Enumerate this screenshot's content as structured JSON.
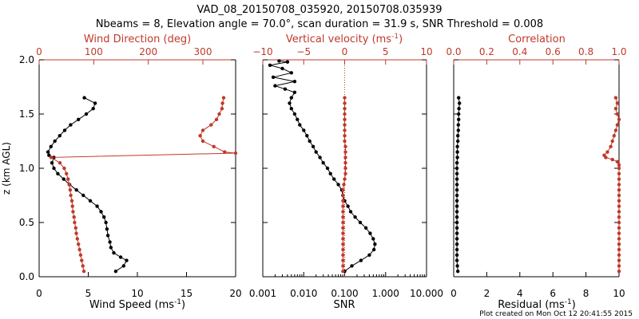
{
  "header": {
    "line1": "VAD_08_20150708_035920, 20150708.035939",
    "line2": "Nbeams = 8, Elevation angle = 70.0°, scan duration = 31.9 s, SNR Threshold = 0.008"
  },
  "footer": {
    "created": "Plot created on Mon Oct 12 20:41:55 2015"
  },
  "colors": {
    "black": "#000000",
    "red": "#c0392b"
  },
  "chart_data": [
    {
      "type": "line",
      "panel": "wind",
      "ylabel": "z (km AGL)",
      "ylim": [
        0,
        2.0
      ],
      "yticks": [
        "0.0",
        "0.5",
        "1.0",
        "1.5",
        "2.0"
      ],
      "xlabel": "Wind Speed (ms",
      "xlabel_sup": "-1",
      "xlabel_end": ")",
      "xlim": [
        0,
        20
      ],
      "xticks": [
        "0",
        "5",
        "10",
        "15",
        "20"
      ],
      "top_label": "Wind Direction (deg)",
      "top_lim": [
        0,
        360
      ],
      "top_ticks": [
        "0",
        "100",
        "200",
        "300"
      ],
      "series": [
        {
          "name": "Wind Speed",
          "color": "#000000",
          "points": [
            [
              7.8,
              0.05
            ],
            [
              8.6,
              0.1
            ],
            [
              8.9,
              0.15
            ],
            [
              8.3,
              0.18
            ],
            [
              7.6,
              0.22
            ],
            [
              7.3,
              0.27
            ],
            [
              7.2,
              0.32
            ],
            [
              7.0,
              0.38
            ],
            [
              6.9,
              0.44
            ],
            [
              6.8,
              0.5
            ],
            [
              6.6,
              0.55
            ],
            [
              6.3,
              0.6
            ],
            [
              5.9,
              0.65
            ],
            [
              5.2,
              0.7
            ],
            [
              4.5,
              0.75
            ],
            [
              3.8,
              0.8
            ],
            [
              3.1,
              0.85
            ],
            [
              2.5,
              0.9
            ],
            [
              1.9,
              0.95
            ],
            [
              1.5,
              1.0
            ],
            [
              1.3,
              1.05
            ],
            [
              1.5,
              1.1
            ],
            [
              1.0,
              1.12
            ],
            [
              0.9,
              1.15
            ],
            [
              1.2,
              1.2
            ],
            [
              1.6,
              1.25
            ],
            [
              2.1,
              1.3
            ],
            [
              2.6,
              1.35
            ],
            [
              3.2,
              1.4
            ],
            [
              4.0,
              1.45
            ],
            [
              4.8,
              1.5
            ],
            [
              5.5,
              1.55
            ],
            [
              5.7,
              1.6
            ],
            [
              4.6,
              1.65
            ]
          ]
        },
        {
          "name": "Wind Direction",
          "color": "#c0392b",
          "points": [
            [
              82,
              0.05
            ],
            [
              80,
              0.1
            ],
            [
              78,
              0.15
            ],
            [
              76,
              0.2
            ],
            [
              74,
              0.25
            ],
            [
              72,
              0.3
            ],
            [
              70,
              0.35
            ],
            [
              68,
              0.4
            ],
            [
              67,
              0.45
            ],
            [
              65,
              0.5
            ],
            [
              64,
              0.55
            ],
            [
              62,
              0.6
            ],
            [
              61,
              0.65
            ],
            [
              60,
              0.7
            ],
            [
              58,
              0.75
            ],
            [
              57,
              0.8
            ],
            [
              55,
              0.85
            ],
            [
              53,
              0.9
            ],
            [
              50,
              0.95
            ],
            [
              46,
              1.0
            ],
            [
              38,
              1.05
            ],
            [
              22,
              1.1
            ],
            [
              360,
              1.14
            ],
            [
              340,
              1.15
            ],
            [
              320,
              1.2
            ],
            [
              300,
              1.25
            ],
            [
              295,
              1.3
            ],
            [
              300,
              1.35
            ],
            [
              315,
              1.4
            ],
            [
              325,
              1.45
            ],
            [
              330,
              1.5
            ],
            [
              335,
              1.55
            ],
            [
              336,
              1.6
            ],
            [
              338,
              1.65
            ]
          ]
        }
      ]
    },
    {
      "type": "line",
      "panel": "snr",
      "xlabel": "SNR",
      "xscale": "log",
      "xlim": [
        0.001,
        10.0
      ],
      "xticks": [
        "0.001",
        "0.010",
        "0.100",
        "1.000",
        "10.000"
      ],
      "top_label": "Vertical velocity (ms",
      "top_label_sup": "-1",
      "top_label_end": ")",
      "top_lim": [
        -10,
        10
      ],
      "top_ticks": [
        "−10",
        "−5",
        "0",
        "5",
        "10"
      ],
      "series": [
        {
          "name": "SNR",
          "color": "#000000",
          "points": [
            [
              0.1,
              0.05
            ],
            [
              0.15,
              0.1
            ],
            [
              0.25,
              0.15
            ],
            [
              0.4,
              0.2
            ],
            [
              0.52,
              0.25
            ],
            [
              0.55,
              0.3
            ],
            [
              0.5,
              0.35
            ],
            [
              0.42,
              0.4
            ],
            [
              0.33,
              0.45
            ],
            [
              0.24,
              0.5
            ],
            [
              0.18,
              0.55
            ],
            [
              0.14,
              0.6
            ],
            [
              0.12,
              0.65
            ],
            [
              0.1,
              0.7
            ],
            [
              0.09,
              0.75
            ],
            [
              0.085,
              0.8
            ],
            [
              0.07,
              0.85
            ],
            [
              0.055,
              0.9
            ],
            [
              0.045,
              0.95
            ],
            [
              0.038,
              1.0
            ],
            [
              0.03,
              1.05
            ],
            [
              0.025,
              1.1
            ],
            [
              0.02,
              1.15
            ],
            [
              0.017,
              1.2
            ],
            [
              0.014,
              1.25
            ],
            [
              0.012,
              1.3
            ],
            [
              0.01,
              1.35
            ],
            [
              0.008,
              1.4
            ],
            [
              0.007,
              1.45
            ],
            [
              0.006,
              1.5
            ],
            [
              0.005,
              1.55
            ],
            [
              0.0045,
              1.6
            ],
            [
              0.005,
              1.65
            ],
            [
              0.006,
              1.7
            ],
            [
              0.0035,
              1.73
            ],
            [
              0.002,
              1.76
            ],
            [
              0.006,
              1.8
            ],
            [
              0.0018,
              1.84
            ],
            [
              0.005,
              1.88
            ],
            [
              0.003,
              1.92
            ],
            [
              0.0015,
              1.95
            ],
            [
              0.004,
              1.98
            ],
            [
              0.0025,
              1.99
            ]
          ]
        },
        {
          "name": "Vertical velocity",
          "color": "#c0392b",
          "points": [
            [
              -0.2,
              0.05
            ],
            [
              -0.2,
              0.1
            ],
            [
              -0.2,
              0.15
            ],
            [
              -0.2,
              0.2
            ],
            [
              -0.2,
              0.25
            ],
            [
              -0.2,
              0.3
            ],
            [
              -0.2,
              0.35
            ],
            [
              -0.2,
              0.4
            ],
            [
              -0.2,
              0.45
            ],
            [
              -0.2,
              0.5
            ],
            [
              -0.2,
              0.55
            ],
            [
              -0.2,
              0.6
            ],
            [
              -0.2,
              0.65
            ],
            [
              -0.2,
              0.7
            ],
            [
              -0.2,
              0.75
            ],
            [
              -0.2,
              0.8
            ],
            [
              -0.1,
              0.85
            ],
            [
              0.0,
              0.9
            ],
            [
              0.1,
              0.95
            ],
            [
              0.1,
              1.0
            ],
            [
              0.1,
              1.05
            ],
            [
              0.1,
              1.1
            ],
            [
              0.1,
              1.15
            ],
            [
              0.1,
              1.2
            ],
            [
              0.0,
              1.25
            ],
            [
              0.0,
              1.3
            ],
            [
              0.0,
              1.35
            ],
            [
              0.0,
              1.4
            ],
            [
              0.0,
              1.45
            ],
            [
              0.0,
              1.5
            ],
            [
              0.0,
              1.55
            ],
            [
              0.0,
              1.6
            ],
            [
              0.0,
              1.65
            ]
          ]
        }
      ]
    },
    {
      "type": "line",
      "panel": "residual",
      "xlabel": "Residual (ms",
      "xlabel_sup": "-1",
      "xlabel_end": ")",
      "xlim": [
        0,
        10
      ],
      "xticks": [
        "0",
        "2",
        "4",
        "6",
        "8",
        "10"
      ],
      "top_label": "Correlation",
      "top_lim": [
        0.0,
        1.0
      ],
      "top_ticks": [
        "0.0",
        "0.2",
        "0.4",
        "0.6",
        "0.8",
        "1.0"
      ],
      "series": [
        {
          "name": "Residual",
          "color": "#000000",
          "points": [
            [
              0.25,
              0.05
            ],
            [
              0.22,
              0.1
            ],
            [
              0.2,
              0.15
            ],
            [
              0.2,
              0.2
            ],
            [
              0.2,
              0.25
            ],
            [
              0.2,
              0.3
            ],
            [
              0.2,
              0.35
            ],
            [
              0.2,
              0.4
            ],
            [
              0.2,
              0.45
            ],
            [
              0.2,
              0.5
            ],
            [
              0.2,
              0.55
            ],
            [
              0.2,
              0.6
            ],
            [
              0.2,
              0.65
            ],
            [
              0.2,
              0.7
            ],
            [
              0.2,
              0.75
            ],
            [
              0.2,
              0.8
            ],
            [
              0.2,
              0.85
            ],
            [
              0.2,
              0.9
            ],
            [
              0.2,
              0.95
            ],
            [
              0.2,
              1.0
            ],
            [
              0.2,
              1.05
            ],
            [
              0.22,
              1.1
            ],
            [
              0.22,
              1.15
            ],
            [
              0.22,
              1.2
            ],
            [
              0.25,
              1.25
            ],
            [
              0.25,
              1.3
            ],
            [
              0.28,
              1.35
            ],
            [
              0.28,
              1.4
            ],
            [
              0.3,
              1.45
            ],
            [
              0.3,
              1.5
            ],
            [
              0.32,
              1.55
            ],
            [
              0.35,
              1.6
            ],
            [
              0.3,
              1.65
            ]
          ]
        },
        {
          "name": "Correlation",
          "color": "#c0392b",
          "points": [
            [
              1.0,
              0.05
            ],
            [
              1.0,
              0.1
            ],
            [
              1.0,
              0.15
            ],
            [
              1.0,
              0.2
            ],
            [
              1.0,
              0.25
            ],
            [
              1.0,
              0.3
            ],
            [
              1.0,
              0.35
            ],
            [
              1.0,
              0.4
            ],
            [
              1.0,
              0.45
            ],
            [
              1.0,
              0.5
            ],
            [
              1.0,
              0.55
            ],
            [
              1.0,
              0.6
            ],
            [
              1.0,
              0.65
            ],
            [
              1.0,
              0.7
            ],
            [
              1.0,
              0.75
            ],
            [
              1.0,
              0.8
            ],
            [
              1.0,
              0.85
            ],
            [
              1.0,
              0.9
            ],
            [
              1.0,
              0.95
            ],
            [
              1.0,
              1.0
            ],
            [
              1.0,
              1.03
            ],
            [
              0.99,
              1.06
            ],
            [
              0.96,
              1.08
            ],
            [
              0.92,
              1.1
            ],
            [
              0.91,
              1.12
            ],
            [
              0.93,
              1.15
            ],
            [
              0.95,
              1.2
            ],
            [
              0.96,
              1.25
            ],
            [
              0.97,
              1.3
            ],
            [
              0.98,
              1.35
            ],
            [
              0.99,
              1.4
            ],
            [
              1.0,
              1.45
            ],
            [
              0.99,
              1.5
            ],
            [
              0.98,
              1.55
            ],
            [
              0.99,
              1.6
            ],
            [
              0.98,
              1.65
            ]
          ]
        }
      ]
    }
  ]
}
